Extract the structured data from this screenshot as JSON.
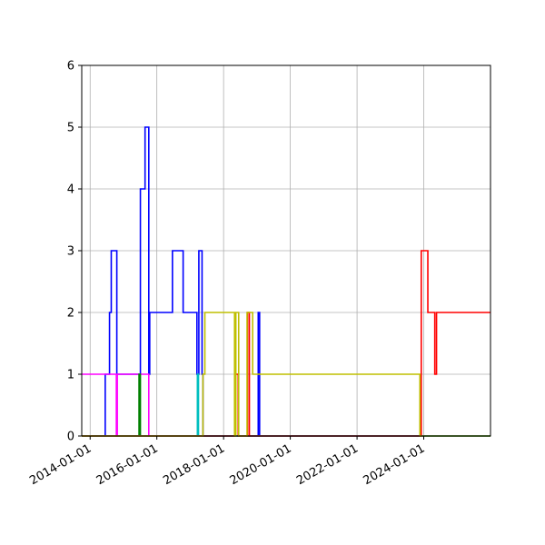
{
  "chart_data": {
    "type": "line",
    "step": true,
    "title": "",
    "xlabel": "",
    "ylabel": "",
    "x_axis_type": "date",
    "xlim": [
      "2013-10-01",
      "2026-01-01"
    ],
    "ylim": [
      0,
      6
    ],
    "grid": true,
    "legend": "none",
    "x_ticks": [
      "2014-01-01",
      "2016-01-01",
      "2018-01-01",
      "2020-01-01",
      "2022-01-01",
      "2024-01-01"
    ],
    "y_ticks": [
      0,
      1,
      2,
      3,
      4,
      5,
      6
    ],
    "series": [
      {
        "color": "#0000ff",
        "points": [
          [
            "2013-10-01",
            0
          ],
          [
            "2014-06-15",
            0
          ],
          [
            "2014-06-15",
            1
          ],
          [
            "2014-08-01",
            1
          ],
          [
            "2014-08-01",
            2
          ],
          [
            "2014-08-20",
            2
          ],
          [
            "2014-08-20",
            3
          ],
          [
            "2014-10-20",
            3
          ],
          [
            "2014-10-20",
            1
          ],
          [
            "2015-07-05",
            1
          ],
          [
            "2015-07-05",
            4
          ],
          [
            "2015-08-25",
            4
          ],
          [
            "2015-08-25",
            5
          ],
          [
            "2015-10-05",
            5
          ],
          [
            "2015-10-05",
            1
          ],
          [
            "2015-10-15",
            1
          ],
          [
            "2015-10-15",
            2
          ],
          [
            "2016-06-20",
            2
          ],
          [
            "2016-06-20",
            3
          ],
          [
            "2016-10-15",
            3
          ],
          [
            "2016-10-15",
            2
          ],
          [
            "2017-03-15",
            2
          ],
          [
            "2017-03-15",
            1
          ],
          [
            "2017-04-05",
            1
          ],
          [
            "2017-04-05",
            3
          ],
          [
            "2017-05-10",
            3
          ],
          [
            "2017-05-10",
            1
          ],
          [
            "2017-05-20",
            1
          ],
          [
            "2017-05-20",
            0
          ],
          [
            "2019-01-15",
            0
          ],
          [
            "2019-01-15",
            2
          ],
          [
            "2019-01-30",
            2
          ],
          [
            "2019-01-30",
            0
          ],
          [
            "2026-01-01",
            0
          ]
        ]
      },
      {
        "color": "#ff00ff",
        "points": [
          [
            "2013-10-01",
            1
          ],
          [
            "2014-10-15",
            1
          ],
          [
            "2014-10-15",
            0
          ],
          [
            "2014-10-25",
            0
          ],
          [
            "2014-10-25",
            1
          ],
          [
            "2015-10-05",
            1
          ],
          [
            "2015-10-05",
            0
          ],
          [
            "2026-01-01",
            0
          ]
        ]
      },
      {
        "color": "#008000",
        "points": [
          [
            "2013-10-01",
            0
          ],
          [
            "2015-06-20",
            0
          ],
          [
            "2015-06-20",
            1
          ],
          [
            "2015-07-05",
            1
          ],
          [
            "2015-07-05",
            0
          ],
          [
            "2026-01-01",
            0
          ]
        ]
      },
      {
        "color": "#00bfbf",
        "points": [
          [
            "2013-10-01",
            0
          ],
          [
            "2017-03-20",
            0
          ],
          [
            "2017-03-20",
            1
          ],
          [
            "2017-04-01",
            1
          ],
          [
            "2017-04-01",
            0
          ],
          [
            "2026-01-01",
            0
          ]
        ]
      },
      {
        "color": "#ff0000",
        "points": [
          [
            "2013-10-01",
            0
          ],
          [
            "2018-05-05",
            0
          ],
          [
            "2018-05-05",
            1
          ],
          [
            "2018-06-10",
            1
          ],
          [
            "2018-06-10",
            0
          ],
          [
            "2018-09-20",
            0
          ],
          [
            "2018-09-20",
            2
          ],
          [
            "2018-10-10",
            2
          ],
          [
            "2018-10-10",
            0
          ],
          [
            "2023-12-05",
            0
          ],
          [
            "2023-12-05",
            3
          ],
          [
            "2024-02-15",
            3
          ],
          [
            "2024-02-15",
            2
          ],
          [
            "2024-05-01",
            2
          ],
          [
            "2024-05-01",
            1
          ],
          [
            "2024-05-20",
            1
          ],
          [
            "2024-05-20",
            2
          ],
          [
            "2026-01-01",
            2
          ]
        ]
      },
      {
        "color": "#bfbf00",
        "points": [
          [
            "2013-10-01",
            0
          ],
          [
            "2017-05-20",
            0
          ],
          [
            "2017-05-20",
            1
          ],
          [
            "2017-06-10",
            1
          ],
          [
            "2017-06-10",
            2
          ],
          [
            "2018-05-01",
            2
          ],
          [
            "2018-05-01",
            0
          ],
          [
            "2018-05-15",
            0
          ],
          [
            "2018-05-15",
            2
          ],
          [
            "2018-06-15",
            2
          ],
          [
            "2018-06-15",
            0
          ],
          [
            "2018-09-15",
            0
          ],
          [
            "2018-09-15",
            2
          ],
          [
            "2018-11-15",
            2
          ],
          [
            "2018-11-15",
            1
          ],
          [
            "2023-11-20",
            1
          ],
          [
            "2023-11-20",
            0
          ],
          [
            "2026-01-01",
            0
          ]
        ]
      }
    ]
  }
}
